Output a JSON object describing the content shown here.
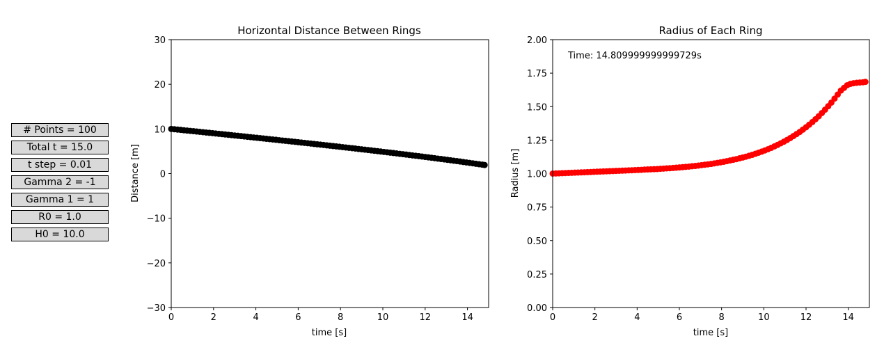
{
  "parameters": [
    {
      "label": "# Points = 100"
    },
    {
      "label": "Total t = 15.0"
    },
    {
      "label": "t step = 0.01"
    },
    {
      "label": "Gamma 2 = -1"
    },
    {
      "label": "Gamma 1 = 1"
    },
    {
      "label": "R0 = 1.0"
    },
    {
      "label": "H0 = 10.0"
    }
  ],
  "chart_data": [
    {
      "type": "scatter",
      "title": "Horizontal Distance Between Rings",
      "xlabel": "time [s]",
      "ylabel": "Distance [m]",
      "xlim": [
        0,
        15
      ],
      "ylim": [
        -30,
        30
      ],
      "xticks": [
        0,
        2,
        4,
        6,
        8,
        10,
        12,
        14
      ],
      "yticks": [
        -30,
        -20,
        -10,
        0,
        10,
        20,
        30
      ],
      "marker_color": "#000000",
      "x": [
        0.0,
        0.15,
        0.3,
        0.45,
        0.6,
        0.75,
        0.9,
        1.05,
        1.2,
        1.35,
        1.5,
        1.65,
        1.8,
        1.95,
        2.1,
        2.25,
        2.4,
        2.55,
        2.7,
        2.85,
        3.0,
        3.15,
        3.3,
        3.45,
        3.6,
        3.75,
        3.9,
        4.05,
        4.2,
        4.35,
        4.5,
        4.65,
        4.8,
        4.95,
        5.1,
        5.25,
        5.4,
        5.55,
        5.7,
        5.85,
        6.0,
        6.15,
        6.3,
        6.45,
        6.6,
        6.75,
        6.9,
        7.05,
        7.2,
        7.35,
        7.5,
        7.65,
        7.8,
        7.95,
        8.1,
        8.25,
        8.4,
        8.55,
        8.7,
        8.85,
        9.0,
        9.15,
        9.3,
        9.45,
        9.6,
        9.75,
        9.9,
        10.05,
        10.2,
        10.35,
        10.5,
        10.65,
        10.8,
        10.95,
        11.1,
        11.25,
        11.4,
        11.55,
        11.7,
        11.85,
        12.0,
        12.15,
        12.3,
        12.45,
        12.6,
        12.75,
        12.9,
        13.05,
        13.2,
        13.35,
        13.5,
        13.65,
        13.8,
        13.95,
        14.1,
        14.25,
        14.4,
        14.55,
        14.7,
        14.81
      ],
      "y": [
        10.0,
        9.93,
        9.86,
        9.79,
        9.71,
        9.64,
        9.57,
        9.5,
        9.42,
        9.35,
        9.28,
        9.2,
        9.13,
        9.06,
        8.98,
        8.91,
        8.84,
        8.76,
        8.69,
        8.61,
        8.54,
        8.47,
        8.39,
        8.32,
        8.24,
        8.17,
        8.09,
        8.02,
        7.94,
        7.87,
        7.79,
        7.72,
        7.64,
        7.57,
        7.49,
        7.41,
        7.34,
        7.26,
        7.18,
        7.11,
        7.03,
        6.95,
        6.88,
        6.8,
        6.72,
        6.64,
        6.56,
        6.49,
        6.41,
        6.33,
        6.25,
        6.17,
        6.09,
        6.01,
        5.93,
        5.85,
        5.77,
        5.69,
        5.61,
        5.52,
        5.44,
        5.36,
        5.28,
        5.2,
        5.11,
        5.03,
        4.94,
        4.86,
        4.78,
        4.69,
        4.61,
        4.52,
        4.43,
        4.35,
        4.26,
        4.17,
        4.08,
        4.0,
        3.91,
        3.82,
        3.73,
        3.64,
        3.55,
        3.45,
        3.36,
        3.27,
        3.18,
        3.08,
        2.99,
        2.89,
        2.8,
        2.7,
        2.6,
        2.5,
        2.4,
        2.3,
        2.2,
        2.1,
        2.0,
        1.92
      ]
    },
    {
      "type": "scatter",
      "title": "Radius of Each Ring",
      "xlabel": "time [s]",
      "ylabel": "Radius [m]",
      "xlim": [
        0,
        15
      ],
      "ylim": [
        0.0,
        2.0
      ],
      "xticks": [
        0,
        2,
        4,
        6,
        8,
        10,
        12,
        14
      ],
      "yticks": [
        0.0,
        0.25,
        0.5,
        0.75,
        1.0,
        1.25,
        1.5,
        1.75,
        2.0
      ],
      "marker_color": "#ff0000",
      "annotation": "Time: 14.809999999999729s",
      "x": [
        0.0,
        0.15,
        0.3,
        0.45,
        0.6,
        0.75,
        0.9,
        1.05,
        1.2,
        1.35,
        1.5,
        1.65,
        1.8,
        1.95,
        2.1,
        2.25,
        2.4,
        2.55,
        2.7,
        2.85,
        3.0,
        3.15,
        3.3,
        3.45,
        3.6,
        3.75,
        3.9,
        4.05,
        4.2,
        4.35,
        4.5,
        4.65,
        4.8,
        4.95,
        5.1,
        5.25,
        5.4,
        5.55,
        5.7,
        5.85,
        6.0,
        6.15,
        6.3,
        6.45,
        6.6,
        6.75,
        6.9,
        7.05,
        7.2,
        7.35,
        7.5,
        7.65,
        7.8,
        7.95,
        8.1,
        8.25,
        8.4,
        8.55,
        8.7,
        8.85,
        9.0,
        9.15,
        9.3,
        9.45,
        9.6,
        9.75,
        9.9,
        10.05,
        10.2,
        10.35,
        10.5,
        10.65,
        10.8,
        10.95,
        11.1,
        11.25,
        11.4,
        11.55,
        11.7,
        11.85,
        12.0,
        12.15,
        12.3,
        12.45,
        12.6,
        12.75,
        12.9,
        13.05,
        13.2,
        13.35,
        13.5,
        13.65,
        13.8,
        13.95,
        14.1,
        14.25,
        14.4,
        14.55,
        14.7,
        14.81
      ],
      "y": [
        1.0,
        1.001,
        1.002,
        1.003,
        1.004,
        1.005,
        1.006,
        1.007,
        1.008,
        1.009,
        1.01,
        1.011,
        1.012,
        1.013,
        1.014,
        1.015,
        1.016,
        1.017,
        1.018,
        1.019,
        1.02,
        1.021,
        1.022,
        1.023,
        1.024,
        1.025,
        1.026,
        1.027,
        1.028,
        1.03,
        1.031,
        1.032,
        1.033,
        1.034,
        1.036,
        1.037,
        1.039,
        1.04,
        1.042,
        1.044,
        1.046,
        1.048,
        1.05,
        1.052,
        1.055,
        1.057,
        1.06,
        1.063,
        1.066,
        1.069,
        1.072,
        1.076,
        1.08,
        1.084,
        1.088,
        1.093,
        1.098,
        1.103,
        1.108,
        1.114,
        1.12,
        1.126,
        1.133,
        1.14,
        1.148,
        1.156,
        1.164,
        1.173,
        1.182,
        1.192,
        1.203,
        1.214,
        1.226,
        1.238,
        1.251,
        1.265,
        1.28,
        1.295,
        1.311,
        1.328,
        1.346,
        1.365,
        1.385,
        1.406,
        1.428,
        1.452,
        1.477,
        1.503,
        1.53,
        1.56,
        1.59,
        1.62,
        1.64,
        1.66,
        1.67,
        1.675,
        1.678,
        1.68,
        1.682,
        1.685
      ]
    }
  ]
}
